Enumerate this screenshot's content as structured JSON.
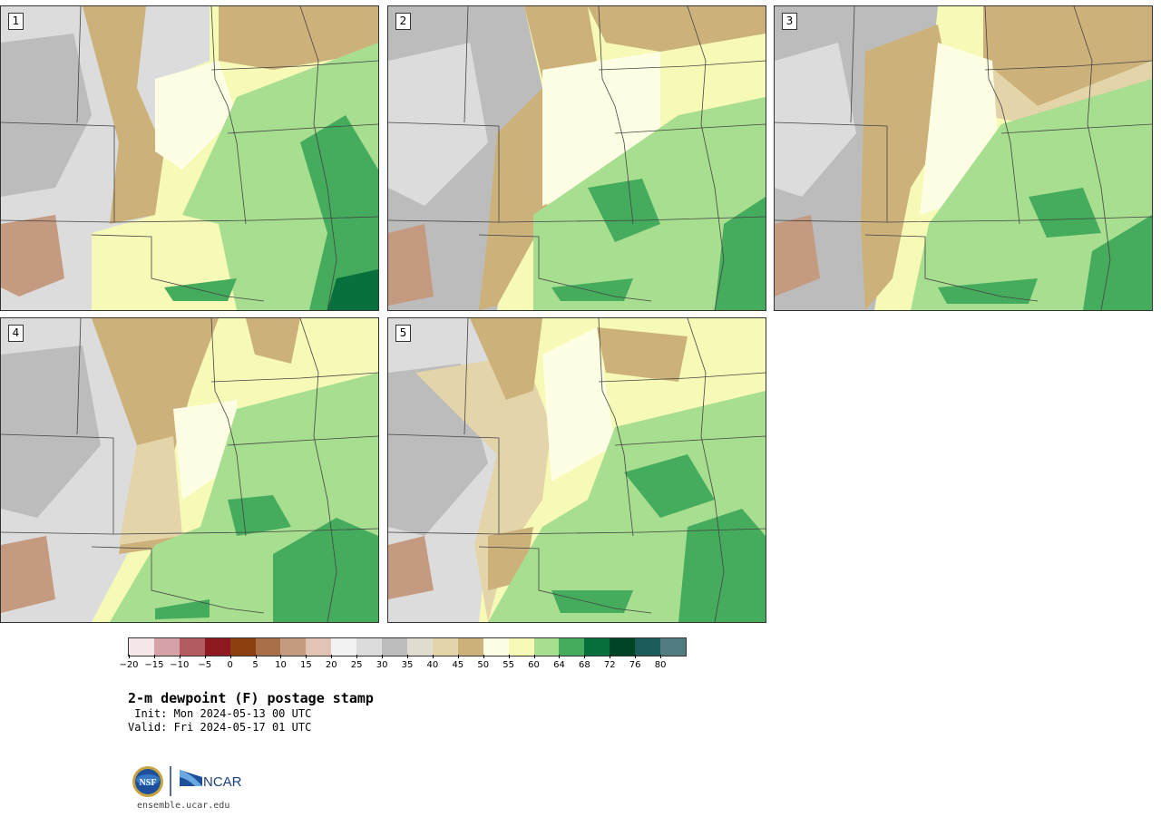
{
  "panels": [
    {
      "label": "1"
    },
    {
      "label": "2"
    },
    {
      "label": "3"
    },
    {
      "label": "4"
    },
    {
      "label": "5"
    }
  ],
  "colorbar": {
    "colors": [
      "#f6e8e8",
      "#d6a2a8",
      "#b25c60",
      "#8e1820",
      "#8c4010",
      "#a87048",
      "#c49a80",
      "#e2c4b4",
      "#f2f2f2",
      "#dcdcdc",
      "#bcbcbc",
      "#e0ddd0",
      "#e4d4aa",
      "#ccb27a",
      "#fefee4",
      "#f6fab6",
      "#a8de90",
      "#44ac5c",
      "#08703c",
      "#004428",
      "#1e5c5a",
      "#507c80"
    ],
    "ticks": [
      "−20",
      "−15",
      "−10",
      "−5",
      "0",
      "5",
      "10",
      "15",
      "20",
      "25",
      "30",
      "35",
      "40",
      "45",
      "50",
      "55",
      "60",
      "64",
      "68",
      "72",
      "76",
      "80"
    ]
  },
  "title": "2-m dewpoint (F) postage stamp",
  "init": " Init: Mon 2024-05-13 00 UTC",
  "valid": "Valid: Fri 2024-05-17 01 UTC",
  "logo": {
    "nsf_text": "NSF",
    "ncar_text": "NCAR"
  },
  "url": "ensemble.ucar.edu"
}
